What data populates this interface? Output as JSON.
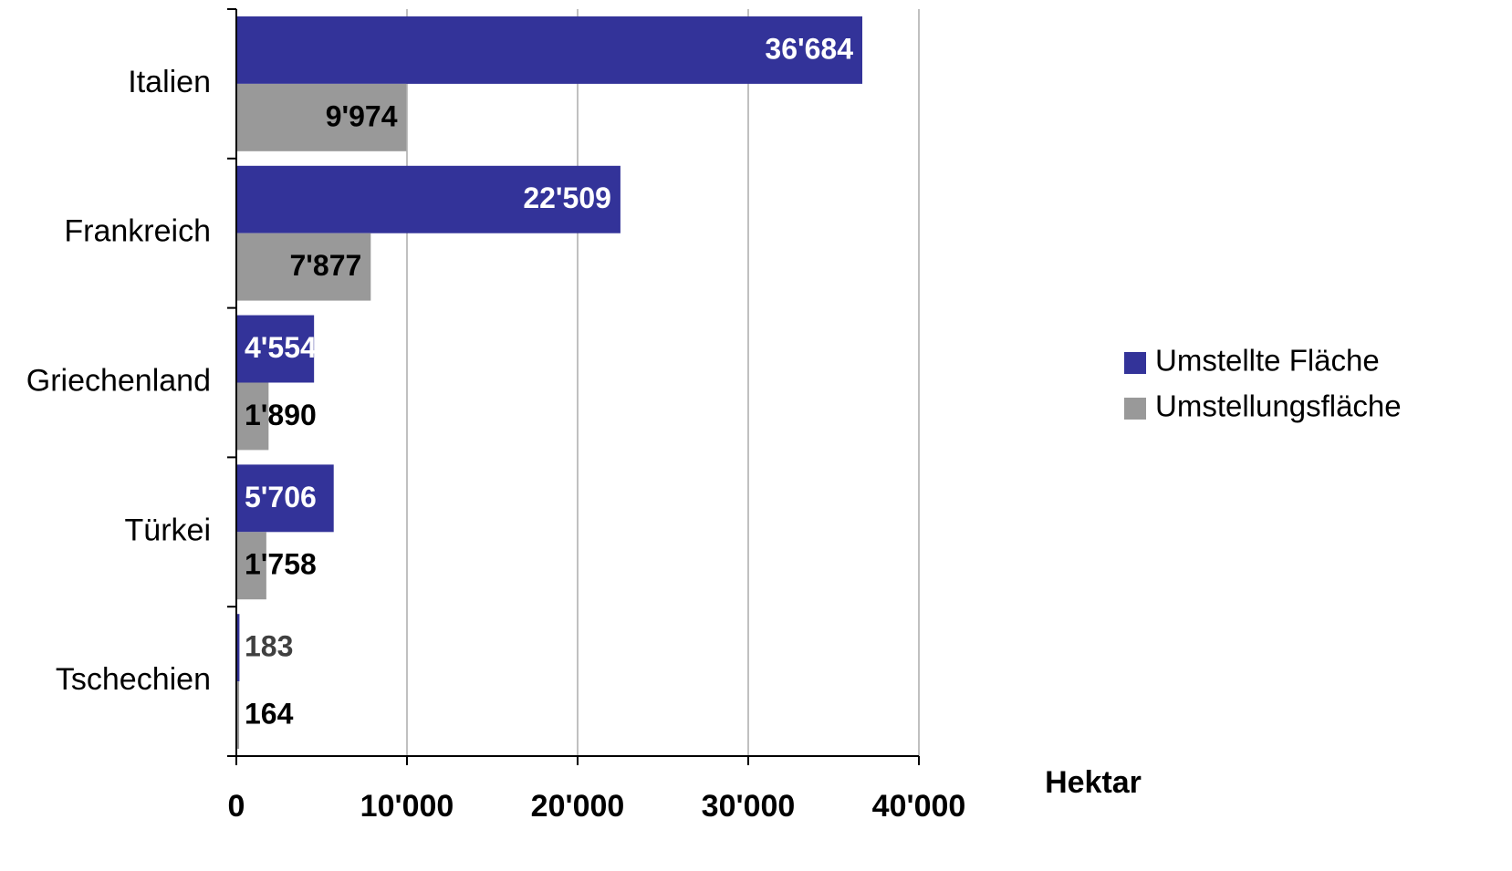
{
  "chart_data": {
    "type": "bar",
    "orientation": "horizontal",
    "categories": [
      "Italien",
      "Frankreich",
      "Griechenland",
      "Türkei",
      "Tschechien"
    ],
    "series": [
      {
        "name": "Umstellte Fläche",
        "color": "#333399",
        "label_color": "#ffffff",
        "values": [
          36684,
          22509,
          4554,
          5706,
          183
        ],
        "value_labels": [
          "36'684",
          "22'509",
          "4'554",
          "5'706",
          "183"
        ]
      },
      {
        "name": "Umstellungsfläche",
        "color": "#999999",
        "label_color": "#000000",
        "values": [
          9974,
          7877,
          1890,
          1758,
          164
        ],
        "value_labels": [
          "9'974",
          "7'877",
          "1'890",
          "1'758",
          "164"
        ]
      }
    ],
    "x_label": "Hektar",
    "xlim": [
      0,
      40000
    ],
    "xticks": [
      0,
      {
        "value": 10000,
        "label": "10'000"
      },
      {
        "value": 20000,
        "label": "20'000"
      },
      {
        "value": 30000,
        "label": "30'000"
      },
      {
        "value": 40000,
        "label": "40'000"
      }
    ],
    "grid": true,
    "legend": "right"
  }
}
